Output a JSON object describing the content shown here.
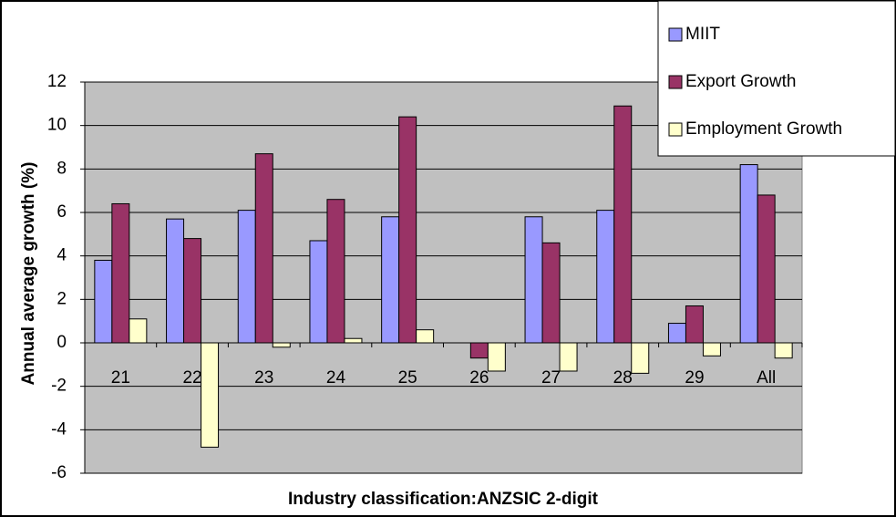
{
  "chart_data": {
    "type": "bar",
    "xlabel": "Industry classification:ANZSIC 2-digit",
    "ylabel": "Annual average growth (%)",
    "categories": [
      "21",
      "22",
      "23",
      "24",
      "25",
      "26",
      "27",
      "28",
      "29",
      "All"
    ],
    "series": [
      {
        "name": "MIIT",
        "color": "#9999ff",
        "values": [
          3.8,
          5.7,
          6.1,
          4.7,
          5.8,
          null,
          5.8,
          6.1,
          0.9,
          8.2
        ]
      },
      {
        "name": "Export Growth",
        "color": "#993366",
        "values": [
          6.4,
          4.8,
          8.7,
          6.6,
          10.4,
          -0.7,
          4.6,
          10.9,
          1.7,
          6.8
        ]
      },
      {
        "name": "Employment Growth",
        "color": "#ffffcc",
        "values": [
          1.1,
          -4.8,
          -0.2,
          0.2,
          0.6,
          -1.3,
          -1.3,
          -1.4,
          -0.6,
          -0.7
        ]
      }
    ],
    "ylim": [
      -6,
      12
    ],
    "yticks": [
      -6,
      -4,
      -2,
      0,
      2,
      4,
      6,
      8,
      10,
      12
    ],
    "grid": true
  }
}
